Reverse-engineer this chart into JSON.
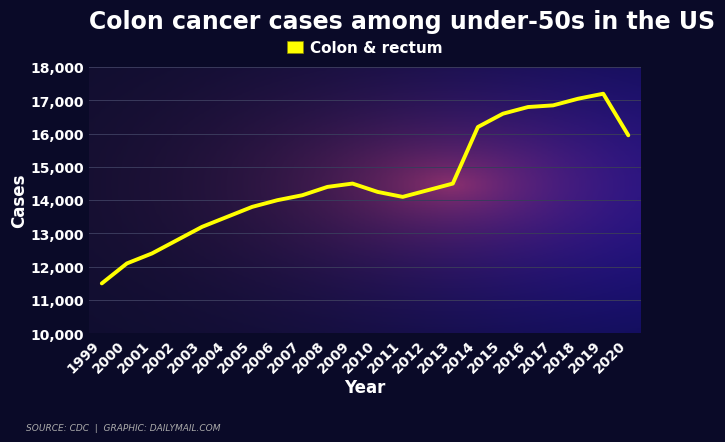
{
  "title": "Colon cancer cases among under-50s in the US",
  "xlabel": "Year",
  "ylabel": "Cases",
  "legend_label": "Colon & rectum",
  "source_text": "SOURCE: CDC  |  GRAPHIC: DAILYMAIL.COM",
  "line_color": "#FFFF00",
  "line_width": 2.8,
  "background_color": "#0a0a28",
  "years": [
    1999,
    2000,
    2001,
    2002,
    2003,
    2004,
    2005,
    2006,
    2007,
    2008,
    2009,
    2010,
    2011,
    2012,
    2013,
    2014,
    2015,
    2016,
    2017,
    2018,
    2019,
    2020
  ],
  "values": [
    11500,
    12100,
    12400,
    12800,
    13200,
    13500,
    13800,
    14000,
    14150,
    14400,
    14500,
    14250,
    14100,
    14300,
    14500,
    16200,
    16600,
    16800,
    16850,
    17050,
    17200,
    15950
  ],
  "ylim": [
    10000,
    18000
  ],
  "yticks": [
    10000,
    11000,
    12000,
    13000,
    14000,
    15000,
    16000,
    17000,
    18000
  ],
  "title_fontsize": 17,
  "axis_label_fontsize": 12,
  "tick_fontsize": 10,
  "legend_fontsize": 11,
  "text_color": "#ffffff",
  "grid_color": "#3a3a5c",
  "ax_bg_color": "#0e0e30"
}
